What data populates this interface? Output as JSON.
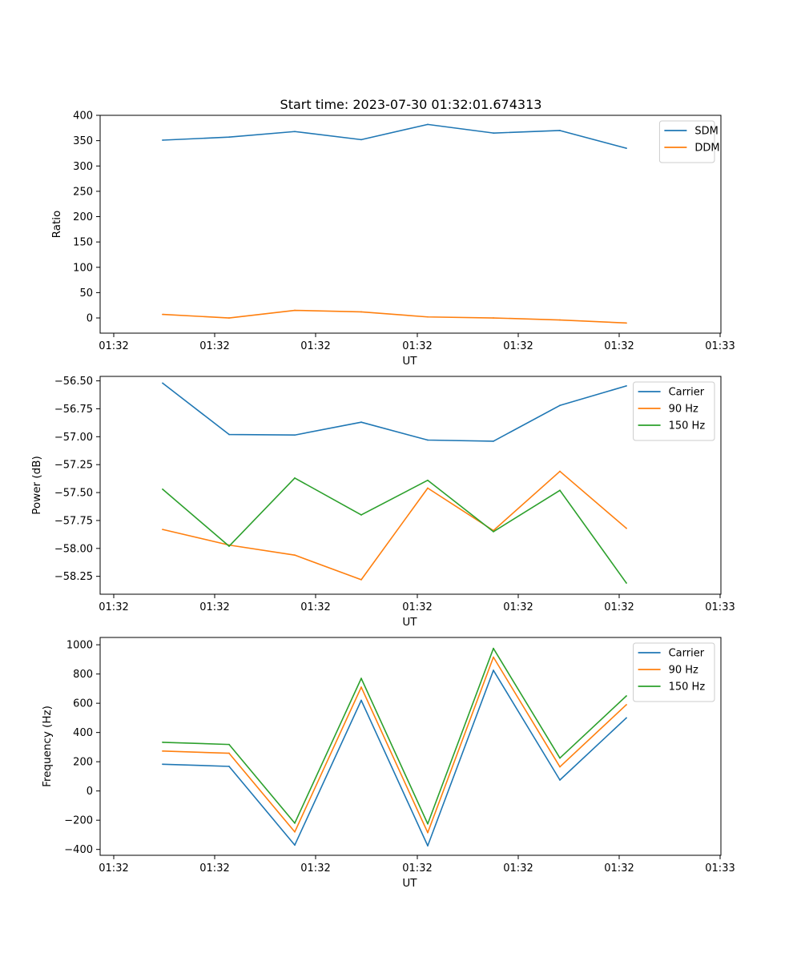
{
  "figure": {
    "title": "Start time: 2023-07-30 01:32:01.674313"
  },
  "chart_data": [
    {
      "type": "line",
      "title": "Start time: 2023-07-30 01:32:01.674313",
      "xlabel": "UT",
      "ylabel": "Ratio",
      "x_tick_labels": [
        "01:32",
        "01:32",
        "01:32",
        "01:32",
        "01:32",
        "01:32",
        "01:32"
      ],
      "last_x_tick_label": "01:33",
      "ylim": [
        -30,
        400
      ],
      "yticks": [
        0,
        50,
        100,
        150,
        200,
        250,
        300,
        350,
        400
      ],
      "ytick_labels": [
        "0",
        "50",
        "100",
        "150",
        "200",
        "250",
        "300",
        "350",
        "400"
      ],
      "legend_position": "top-right",
      "series": [
        {
          "name": "SDM",
          "color": "#1f77b4",
          "values": [
            351,
            357,
            368,
            352,
            382,
            365,
            370,
            335
          ]
        },
        {
          "name": "DDM",
          "color": "#ff7f0e",
          "values": [
            7,
            0,
            15,
            12,
            2,
            0,
            -4,
            -10
          ]
        }
      ]
    },
    {
      "type": "line",
      "title": "",
      "xlabel": "UT",
      "ylabel": "Power (dB)",
      "x_tick_labels": [
        "01:32",
        "01:32",
        "01:32",
        "01:32",
        "01:32",
        "01:32",
        "01:32"
      ],
      "last_x_tick_label": "01:33",
      "ylim": [
        -58.41,
        -56.46
      ],
      "yticks": [
        -58.25,
        -58.0,
        -57.75,
        -57.5,
        -57.25,
        -57.0,
        -56.75,
        -56.5
      ],
      "ytick_labels": [
        "−58.25",
        "−58.00",
        "−57.75",
        "−57.50",
        "−57.25",
        "−57.00",
        "−56.75",
        "−56.50"
      ],
      "legend_position": "top-right",
      "series": [
        {
          "name": "Carrier",
          "color": "#1f77b4",
          "values": [
            -56.52,
            -56.98,
            -56.985,
            -56.87,
            -57.03,
            -57.04,
            -56.72,
            -56.545
          ]
        },
        {
          "name": "90 Hz",
          "color": "#ff7f0e",
          "values": [
            -57.83,
            -57.97,
            -58.06,
            -58.28,
            -57.46,
            -57.84,
            -57.31,
            -57.82
          ]
        },
        {
          "name": "150 Hz",
          "color": "#2ca02c",
          "values": [
            -57.47,
            -57.98,
            -57.37,
            -57.7,
            -57.39,
            -57.85,
            -57.48,
            -58.31
          ]
        }
      ]
    },
    {
      "type": "line",
      "title": "",
      "xlabel": "UT",
      "ylabel": "Frequency (Hz)",
      "x_tick_labels": [
        "01:32",
        "01:32",
        "01:32",
        "01:32",
        "01:32",
        "01:32",
        "01:32"
      ],
      "last_x_tick_label": "01:33",
      "ylim": [
        -440,
        1050
      ],
      "yticks": [
        -400,
        -200,
        0,
        200,
        400,
        600,
        800,
        1000
      ],
      "ytick_labels": [
        "−400",
        "−200",
        "0",
        "200",
        "400",
        "600",
        "800",
        "1000"
      ],
      "legend_position": "top-right",
      "series": [
        {
          "name": "Carrier",
          "color": "#1f77b4",
          "values": [
            183,
            168,
            -370,
            620,
            -375,
            825,
            75,
            500
          ]
        },
        {
          "name": "90 Hz",
          "color": "#ff7f0e",
          "values": [
            273,
            258,
            -280,
            710,
            -285,
            915,
            165,
            590
          ]
        },
        {
          "name": "150 Hz",
          "color": "#2ca02c",
          "values": [
            333,
            318,
            -220,
            770,
            -225,
            975,
            225,
            650
          ]
        }
      ]
    }
  ]
}
